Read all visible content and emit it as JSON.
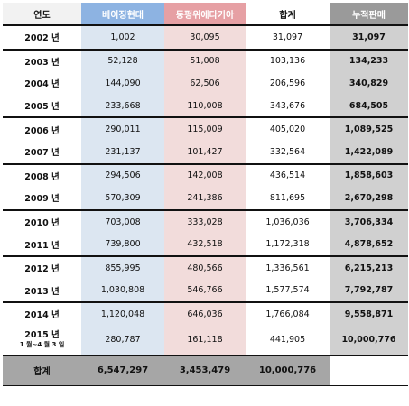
{
  "headers": {
    "year": "연도",
    "beijing": "베이징현대",
    "dongfeng": "둥펑위에다기아",
    "total": "합계",
    "cumulative": "누적판매"
  },
  "rows": [
    {
      "year": "2002 년",
      "beijing": "1,002",
      "dongfeng": "30,095",
      "total": "31,097",
      "cumulative": "31,097"
    },
    {
      "year": "2003 년",
      "beijing": "52,128",
      "dongfeng": "51,008",
      "total": "103,136",
      "cumulative": "134,233"
    },
    {
      "year": "2004 년",
      "beijing": "144,090",
      "dongfeng": "62,506",
      "total": "206,596",
      "cumulative": "340,829"
    },
    {
      "year": "2005 년",
      "beijing": "233,668",
      "dongfeng": "110,008",
      "total": "343,676",
      "cumulative": "684,505"
    },
    {
      "year": "2006 년",
      "beijing": "290,011",
      "dongfeng": "115,009",
      "total": "405,020",
      "cumulative": "1,089,525"
    },
    {
      "year": "2007 년",
      "beijing": "231,137",
      "dongfeng": "101,427",
      "total": "332,564",
      "cumulative": "1,422,089"
    },
    {
      "year": "2008 년",
      "beijing": "294,506",
      "dongfeng": "142,008",
      "total": "436,514",
      "cumulative": "1,858,603"
    },
    {
      "year": "2009 년",
      "beijing": "570,309",
      "dongfeng": "241,386",
      "total": "811,695",
      "cumulative": "2,670,298"
    },
    {
      "year": "2010 년",
      "beijing": "703,008",
      "dongfeng": "333,028",
      "total": "1,036,036",
      "cumulative": "3,706,334"
    },
    {
      "year": "2011 년",
      "beijing": "739,800",
      "dongfeng": "432,518",
      "total": "1,172,318",
      "cumulative": "4,878,652"
    },
    {
      "year": "2012 년",
      "beijing": "855,995",
      "dongfeng": "480,566",
      "total": "1,336,561",
      "cumulative": "6,215,213"
    },
    {
      "year": "2013 년",
      "beijing": "1,030,808",
      "dongfeng": "546,766",
      "total": "1,577,574",
      "cumulative": "7,792,787"
    },
    {
      "year": "2014 년",
      "beijing": "1,120,048",
      "dongfeng": "646,036",
      "total": "1,766,084",
      "cumulative": "9,558,871"
    },
    {
      "year": "2015 년",
      "year_note": "1 월~4 월 3 일",
      "beijing": "280,787",
      "dongfeng": "161,118",
      "total": "441,905",
      "cumulative": "10,000,776"
    }
  ],
  "footer": {
    "label": "합계",
    "beijing": "6,547,297",
    "dongfeng": "3,453,479",
    "total": "10,000,776",
    "cumulative": ""
  }
}
